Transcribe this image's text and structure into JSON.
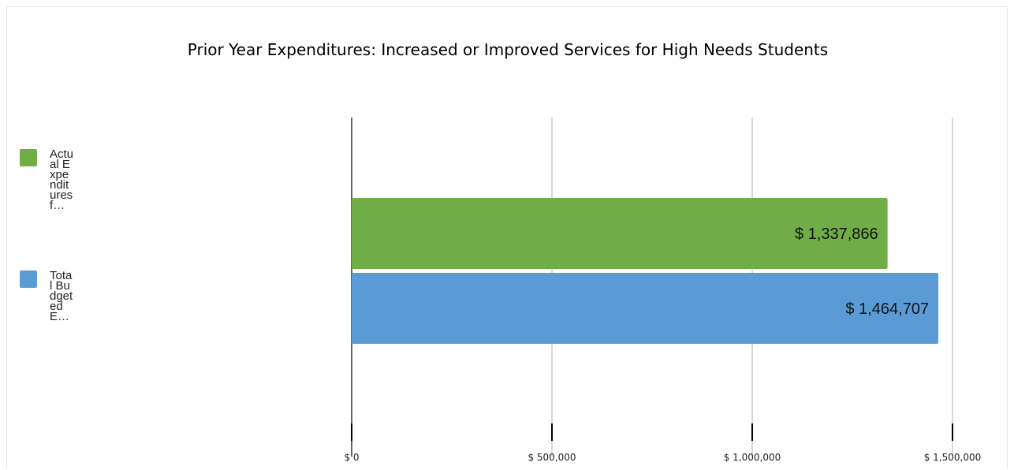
{
  "chart_data": {
    "type": "bar",
    "orientation": "horizontal",
    "title": "Prior Year Expenditures: Increased or Improved Services for High Needs Students",
    "series": [
      {
        "name": "Actual Expenditures f…",
        "value": 1337866,
        "label": "$ 1,337,866",
        "color": "#70ad47"
      },
      {
        "name": "Total Budgeted E…",
        "value": 1464707,
        "label": "$ 1,464,707",
        "color": "#5b9bd5"
      }
    ],
    "xlim": [
      0,
      1500000
    ],
    "ticks": [
      0,
      500000,
      1000000,
      1500000
    ],
    "tick_labels": [
      "$ 0",
      "$ 500,000",
      "$ 1,000,000",
      "$ 1,500,000"
    ],
    "grid": true,
    "legend": "left"
  },
  "legend_items": [
    {
      "label": "Actual Expenditures f…",
      "color": "#70ad47"
    },
    {
      "label": "Total Budgeted E…",
      "color": "#5b9bd5"
    }
  ]
}
